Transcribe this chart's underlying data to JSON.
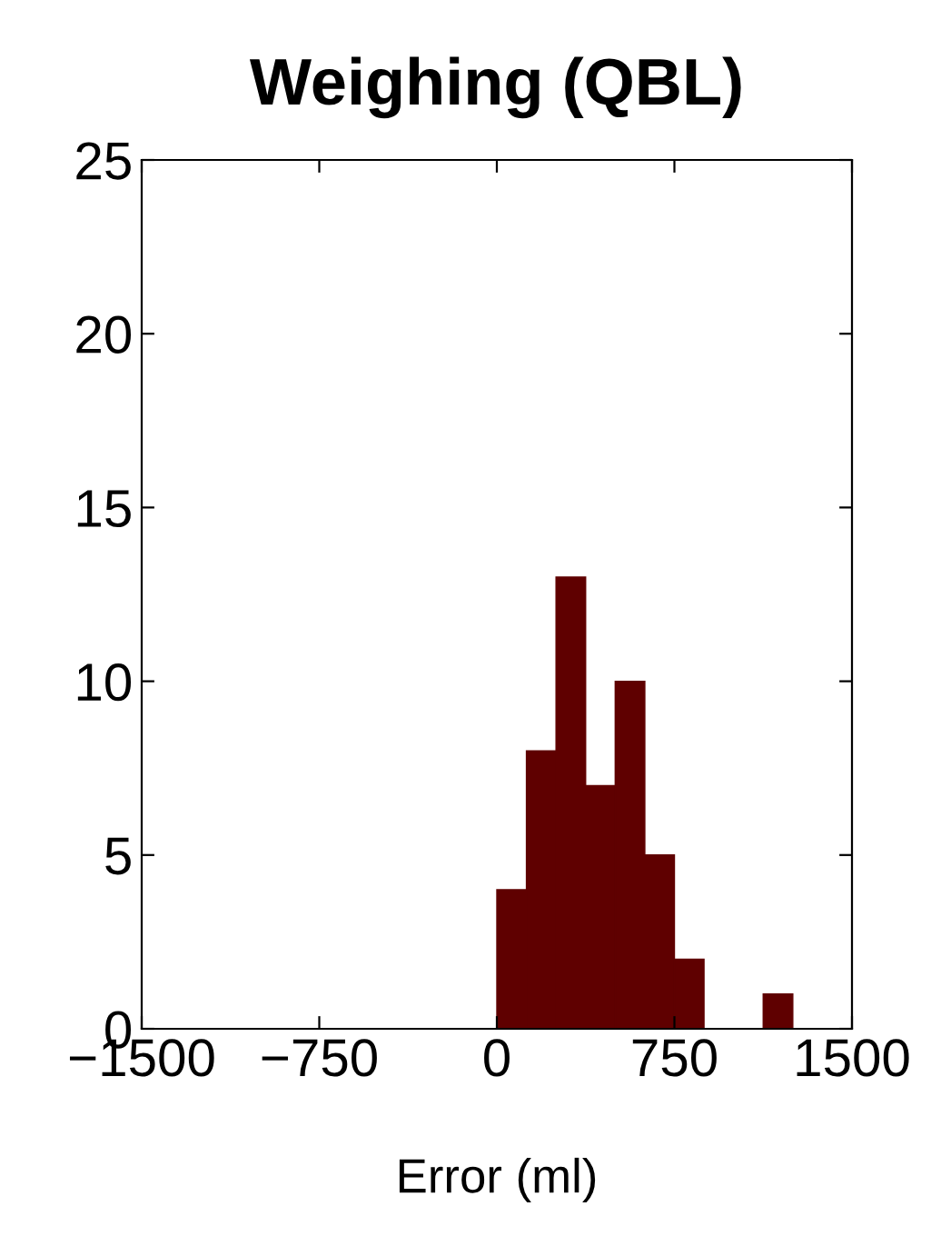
{
  "chart_data": {
    "type": "histogram",
    "title": "Weighing (QBL)",
    "xlabel": "Error (ml)",
    "bins": [
      0,
      125,
      250,
      375,
      500,
      625,
      750,
      875,
      1000,
      1125,
      1250
    ],
    "values": [
      4,
      8,
      13,
      7,
      10,
      5,
      2,
      0,
      0,
      1
    ],
    "color": "#5f0000",
    "xlim": [
      -1500,
      1500
    ],
    "xticks": [
      {
        "value": -1500,
        "label": "−1500"
      },
      {
        "value": -750,
        "label": "−750"
      },
      0,
      750,
      1500
    ],
    "ylim": [
      0,
      25
    ],
    "yticks": [
      0,
      5,
      10,
      15,
      20,
      25
    ],
    "grid": false,
    "legend": false
  }
}
